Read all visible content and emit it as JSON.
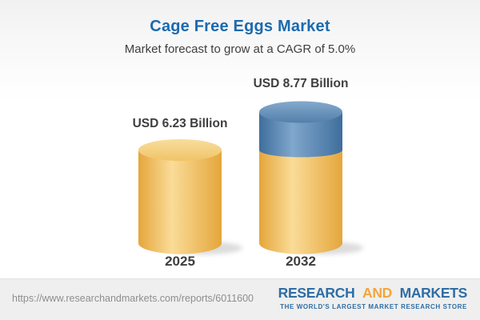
{
  "header": {
    "title": "Cage Free Eggs Market",
    "subtitle": "Market forecast to grow at a CAGR of 5.0%"
  },
  "chart_data": {
    "type": "bar",
    "variant": "3d-cylinder",
    "title": "Cage Free Eggs Market",
    "subtitle": "Market forecast to grow at a CAGR of 5.0%",
    "unit": "USD Billion",
    "cagr_percent": 5.0,
    "categories": [
      "2025",
      "2032"
    ],
    "values": [
      6.23,
      8.77
    ],
    "bars": [
      {
        "category": "2025",
        "value": 6.23,
        "value_label": "USD 6.23 Billion",
        "segments": [
          {
            "name": "base-2025-value",
            "value": 6.23,
            "palette": "gold"
          }
        ]
      },
      {
        "category": "2032",
        "value": 8.77,
        "value_label": "USD 8.77 Billion",
        "segments": [
          {
            "name": "base-2025-value",
            "value": 6.23,
            "palette": "gold"
          },
          {
            "name": "growth-2025-2032",
            "value": 2.54,
            "palette": "blue"
          }
        ]
      }
    ],
    "palettes": {
      "gold": {
        "edge": "#E5A63B",
        "mid": "#FADC98",
        "cap_top": "#F8DD9D",
        "cap_bottom": "#F0C467"
      },
      "blue": {
        "edge": "#3F6E9D",
        "mid": "#80A7CC",
        "cap_top": "#84AACD",
        "cap_bottom": "#537FAA"
      }
    },
    "axes": {
      "x_visible": false,
      "y_visible": false,
      "gridlines": false
    },
    "legend": {
      "visible": false
    }
  },
  "footer": {
    "url": "https://www.researchandmarkets.com/reports/6011600",
    "logo": {
      "word1": "RESEARCH",
      "word2": "AND",
      "word3": "MARKETS",
      "tagline": "THE WORLD'S LARGEST MARKET RESEARCH STORE",
      "blue": "#2E6DA5",
      "gold": "#F2A63B"
    }
  },
  "colors": {
    "title_blue": "#1C6AAE",
    "label_dark": "#3E3E3E",
    "url_gray": "#8E8E8E",
    "footer_bg": "#EFEFEF"
  }
}
